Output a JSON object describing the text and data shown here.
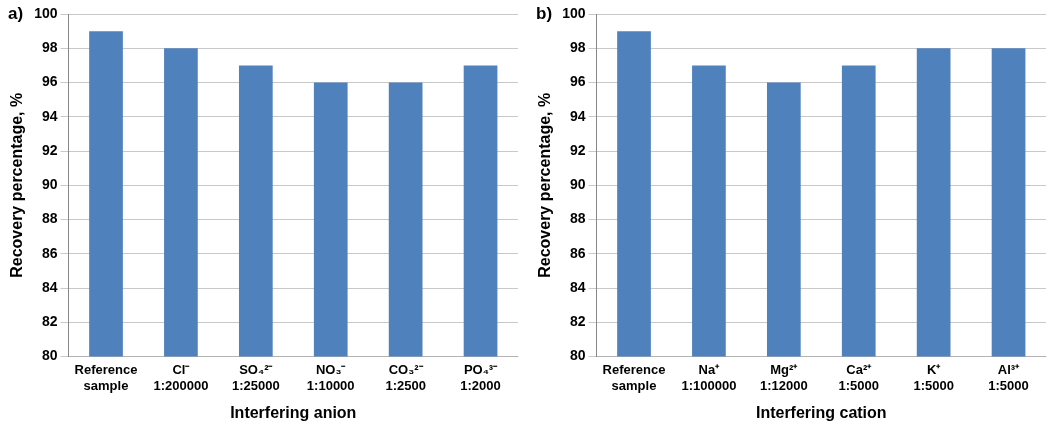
{
  "chart_data": [
    {
      "type": "bar",
      "annotations": [
        "a)"
      ],
      "xlabel": "Interfering anion",
      "ylabel": "Recovery percentage, %",
      "categories": [
        "Reference\nsample",
        "Cl⁻\n1:200000",
        "SO₄²⁻\n1:25000",
        "NO₃⁻\n1:10000",
        "CO₃²⁻\n1:2500",
        "PO₄³⁻\n1:2000"
      ],
      "values": [
        99,
        98,
        97,
        96,
        96,
        97
      ],
      "color": "#4f81bd",
      "ylim": [
        80,
        100
      ],
      "yticks": [
        80,
        82,
        84,
        86,
        88,
        90,
        92,
        94,
        96,
        98,
        100
      ],
      "grid": "y",
      "legend": false
    },
    {
      "type": "bar",
      "annotations": [
        "b)"
      ],
      "xlabel": "Interfering cation",
      "ylabel": "Recovery percentage, %",
      "categories": [
        "Reference\nsample",
        "Na⁺\n1:100000",
        "Mg²⁺\n1:12000",
        "Ca²⁺\n1:5000",
        "K⁺\n1:5000",
        "Al³⁺\n1:5000"
      ],
      "values": [
        99,
        97,
        96,
        97,
        98,
        98
      ],
      "color": "#4f81bd",
      "ylim": [
        80,
        100
      ],
      "yticks": [
        80,
        82,
        84,
        86,
        88,
        90,
        92,
        94,
        96,
        98,
        100
      ],
      "grid": "y",
      "legend": false
    }
  ]
}
